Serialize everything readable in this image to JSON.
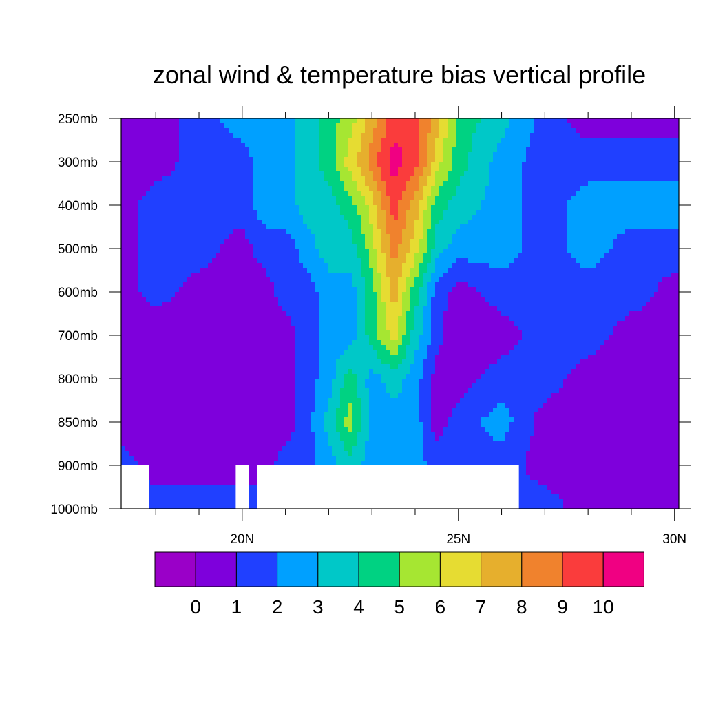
{
  "chart_data": {
    "type": "heatmap",
    "title": "zonal wind & temperature bias vertical profile",
    "xlabel": "",
    "ylabel": "",
    "x_axis": {
      "range": [
        17.2,
        30.1
      ],
      "major_ticks": [
        20,
        25,
        30
      ],
      "major_tick_labels": [
        "20N",
        "25N",
        "30N"
      ],
      "minor_ticks": [
        18,
        19,
        21,
        22,
        23,
        24,
        26,
        27,
        28,
        29
      ]
    },
    "y_axis": {
      "levels": [
        250,
        300,
        400,
        500,
        600,
        700,
        800,
        850,
        900,
        1000
      ],
      "tick_labels": [
        "250mb",
        "300mb",
        "400mb",
        "500mb",
        "600mb",
        "700mb",
        "800mb",
        "850mb",
        "900mb",
        "1000mb"
      ],
      "direction": "pressure-decreasing-upward"
    },
    "grid": false,
    "colorbar": {
      "placement": "bottom",
      "levels": [
        0,
        1,
        2,
        3,
        4,
        5,
        6,
        7,
        8,
        9,
        10
      ],
      "labels": [
        "0",
        "1",
        "2",
        "3",
        "4",
        "5",
        "6",
        "7",
        "8",
        "9",
        "10"
      ],
      "colors": [
        "#9a00c8",
        "#7e00dc",
        "#2040ff",
        "#00a0ff",
        "#00c8c8",
        "#00d282",
        "#a6e632",
        "#e6dc32",
        "#e6af2d",
        "#f0822d",
        "#fa3c3c",
        "#f00082"
      ]
    },
    "missing_regions": [
      {
        "x": [
          17.2,
          17.85
        ],
        "levels": [
          900,
          1000
        ]
      },
      {
        "x": [
          19.85,
          20.15
        ],
        "levels": [
          900,
          1000
        ]
      },
      {
        "x": [
          20.35,
          26.4
        ],
        "levels": [
          900,
          1000
        ]
      }
    ],
    "field": {
      "description_levels": [
        250,
        300,
        400,
        500,
        600,
        700,
        800,
        850,
        900,
        1000
      ],
      "x": [
        17.2,
        18,
        19,
        20,
        20.5,
        21,
        21.5,
        22,
        22.5,
        23,
        23.5,
        24,
        24.5,
        25,
        26,
        27,
        28,
        29,
        30.1
      ],
      "values": [
        [
          0.5,
          0.5,
          1.5,
          2.5,
          2.5,
          2.5,
          3.5,
          4.5,
          5.5,
          7.5,
          9.5,
          9.5,
          7.5,
          4.5,
          3.5,
          1.5,
          0.5,
          0.5,
          0.5
        ],
        [
          0.5,
          0.5,
          1.5,
          1.5,
          2.5,
          2.5,
          3.5,
          4.5,
          6.5,
          8.5,
          10.5,
          9.5,
          6.5,
          4.5,
          2.5,
          1.5,
          1.5,
          1.5,
          1.5
        ],
        [
          0.5,
          1.5,
          1.5,
          1.5,
          2.5,
          2.5,
          3.5,
          3.5,
          4.5,
          6.5,
          9.5,
          7.5,
          4.5,
          3.5,
          2.5,
          1.5,
          2.5,
          2.5,
          2.5
        ],
        [
          0.5,
          1.5,
          1.5,
          0.5,
          1.5,
          1.5,
          2.5,
          3.5,
          3.5,
          5.5,
          8.5,
          6.5,
          3.5,
          2.5,
          2.5,
          1.5,
          2.5,
          1.5,
          1.5
        ],
        [
          0.5,
          1.5,
          0.5,
          0.5,
          0.5,
          1.5,
          1.5,
          2.5,
          2.5,
          4.5,
          7.5,
          4.5,
          1.5,
          0.5,
          1.5,
          1.5,
          1.5,
          1.5,
          0.5
        ],
        [
          0.5,
          0.0,
          0.0,
          0.0,
          0.5,
          0.5,
          1.5,
          2.5,
          2.5,
          4.5,
          6.5,
          3.5,
          1.5,
          0.0,
          0.5,
          1.5,
          1.5,
          0.5,
          0.5
        ],
        [
          0.5,
          0.0,
          0.0,
          0.0,
          0.5,
          0.5,
          1.5,
          2.5,
          4.5,
          2.5,
          3.5,
          2.5,
          0.5,
          0.5,
          1.5,
          1.5,
          0.5,
          0.5,
          0.5
        ],
        [
          0.5,
          0.0,
          0.0,
          0.0,
          0.5,
          0.5,
          1.5,
          3.5,
          5.5,
          2.5,
          2.5,
          2.5,
          0.5,
          1.5,
          2.5,
          0.5,
          0.5,
          0.5,
          0.5
        ],
        [
          1.5,
          0.5,
          0.5,
          0.5,
          0.5,
          1.5,
          1.5,
          2.5,
          3.5,
          2.5,
          2.5,
          2.5,
          1.5,
          1.5,
          1.5,
          0.5,
          0.5,
          0.5,
          0.5
        ],
        [
          1.5,
          1.5,
          1.5,
          1.5,
          1.5,
          1.5,
          1.5,
          1.5,
          1.5,
          1.5,
          1.5,
          1.5,
          1.5,
          1.5,
          1.5,
          1.5,
          0.5,
          0.5,
          0.5
        ]
      ]
    }
  }
}
